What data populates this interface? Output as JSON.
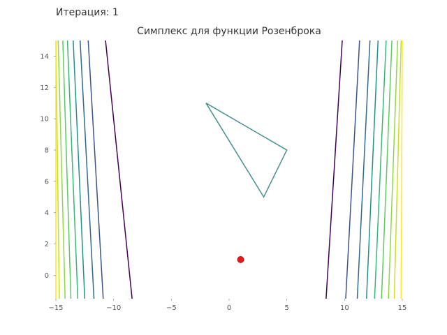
{
  "figure": {
    "iteration_text": "Итерация: 1"
  },
  "chart_data": {
    "type": "line",
    "title": "Симплекс для функции Розенброка",
    "xlabel": "",
    "ylabel": "",
    "xlim": [
      -15,
      15
    ],
    "ylim": [
      -1.5,
      15
    ],
    "x_ticks": [
      {
        "value": -15,
        "label": "−15"
      },
      {
        "value": -10,
        "label": "−10"
      },
      {
        "value": -5,
        "label": "−5"
      },
      {
        "value": 0,
        "label": "0"
      },
      {
        "value": 5,
        "label": "5"
      },
      {
        "value": 10,
        "label": "10"
      },
      {
        "value": 15,
        "label": "15"
      }
    ],
    "y_ticks": [
      {
        "value": 0,
        "label": "0"
      },
      {
        "value": 2,
        "label": "2"
      },
      {
        "value": 4,
        "label": "4"
      },
      {
        "value": 6,
        "label": "6"
      },
      {
        "value": 8,
        "label": "8"
      },
      {
        "value": 10,
        "label": "10"
      },
      {
        "value": 12,
        "label": "12"
      },
      {
        "value": 14,
        "label": "14"
      }
    ],
    "grid": false,
    "contour_levels": [
      {
        "color": "#440154",
        "left_x": [
          -10.7,
          -8.4
        ],
        "right_x": [
          8.4,
          9.8
        ]
      },
      {
        "color": "#3b528b",
        "left_x": [
          -12.2,
          -10.9
        ],
        "right_x": [
          10.1,
          11.3
        ]
      },
      {
        "color": "#31688e",
        "left_x": [
          -12.9,
          -11.7
        ],
        "right_x": [
          11.1,
          12.2
        ]
      },
      {
        "color": "#21918c",
        "left_x": [
          -13.5,
          -12.5
        ],
        "right_x": [
          11.9,
          12.9
        ]
      },
      {
        "color": "#35b779",
        "left_x": [
          -14.0,
          -13.1
        ],
        "right_x": [
          12.6,
          13.6
        ]
      },
      {
        "color": "#5ec962",
        "left_x": [
          -14.4,
          -13.7
        ],
        "right_x": [
          13.2,
          14.1
        ]
      },
      {
        "color": "#90d743",
        "left_x": [
          -14.8,
          -14.2
        ],
        "right_x": [
          13.8,
          14.6
        ]
      },
      {
        "color": "#c8e020",
        "left_x": [
          -15.0,
          -14.7
        ],
        "right_x": [
          14.3,
          14.9
        ]
      },
      {
        "color": "#fde725",
        "left_x": [
          -15.0,
          -15.0
        ],
        "right_x": [
          14.9,
          15.0
        ]
      }
    ],
    "simplex": {
      "color": "#4a8f8c",
      "vertices": [
        [
          -2,
          11
        ],
        [
          5,
          8
        ],
        [
          3,
          5
        ]
      ]
    },
    "minimum": {
      "x": 1,
      "y": 1,
      "color": "#e41a1c"
    }
  }
}
